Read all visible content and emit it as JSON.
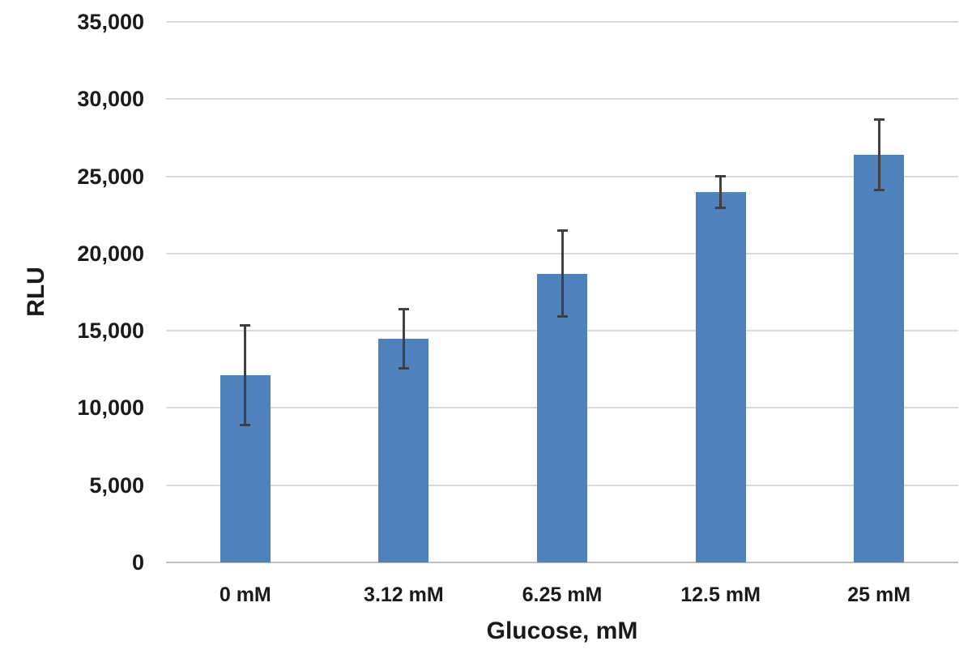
{
  "chart_data": {
    "type": "bar",
    "title": "",
    "xlabel": "Glucose, mM",
    "ylabel": "RLU",
    "categories": [
      "0 mM",
      "3.12 mM",
      "6.25 mM",
      "12.5 mM",
      "25 mM"
    ],
    "values": [
      12100,
      14500,
      18700,
      24000,
      26400
    ],
    "error_bars": [
      3250,
      1950,
      2800,
      1050,
      2300
    ],
    "ylim": [
      0,
      35000
    ],
    "ytick_values": [
      0,
      5000,
      10000,
      15000,
      20000,
      25000,
      30000,
      35000
    ],
    "ytick_labels": [
      "0",
      "5,000",
      "10,000",
      "15,000",
      "20,000",
      "25,000",
      "30,000",
      "35,000"
    ],
    "grid": true,
    "legend": "none",
    "colors": {
      "bar_fill": "#4F81BD",
      "error_bar": "#404040",
      "gridline": "#D9D9D9",
      "axis_line": "#BFBFBF",
      "text": "#1a1a1a",
      "background": "#ffffff"
    }
  }
}
